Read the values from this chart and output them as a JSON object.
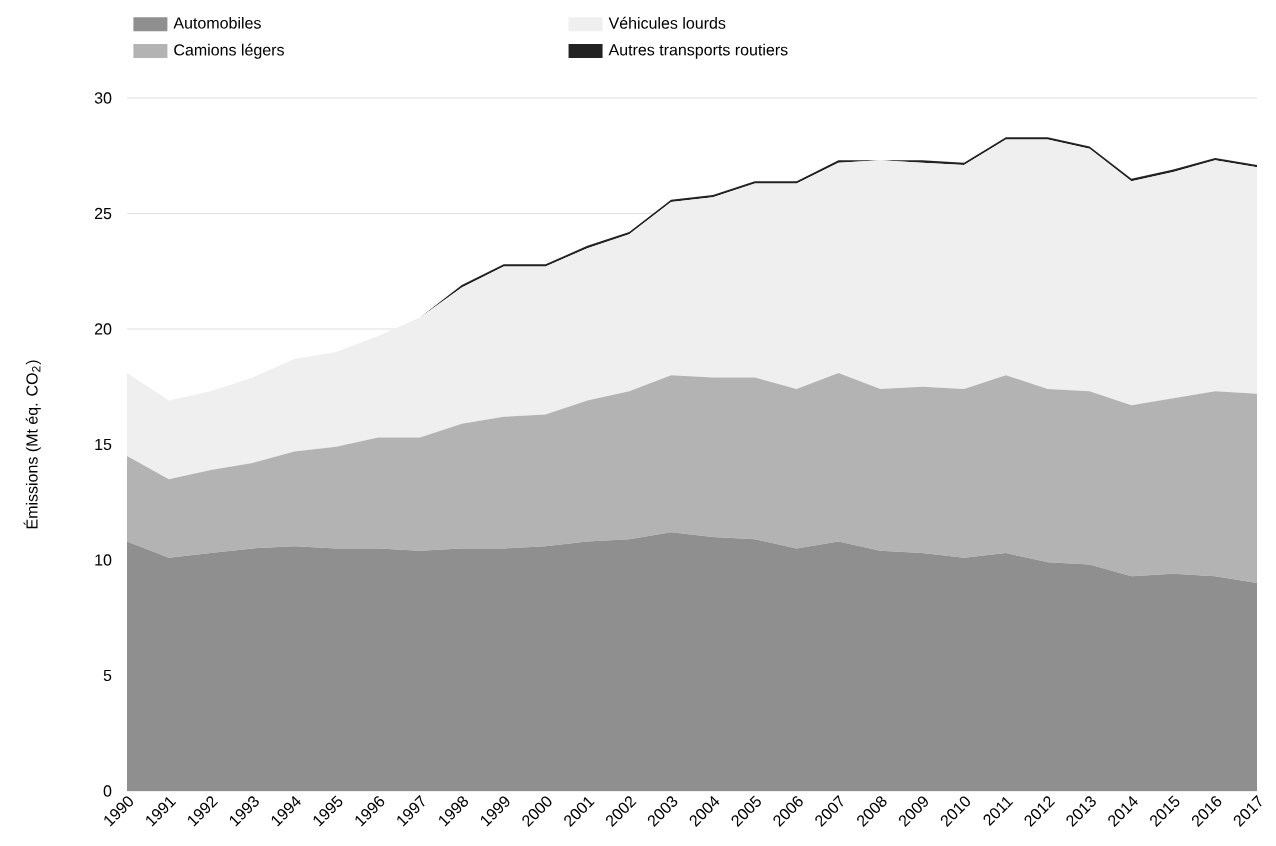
{
  "chart_data": {
    "type": "area",
    "stacked": true,
    "ylabel": "Émissions (Mt éq. CO$_{2}$)",
    "categories": [
      "1990",
      "1991",
      "1992",
      "1993",
      "1994",
      "1995",
      "1996",
      "1997",
      "1998",
      "1999",
      "2000",
      "2001",
      "2002",
      "2003",
      "2004",
      "2005",
      "2006",
      "2007",
      "2008",
      "2009",
      "2010",
      "2011",
      "2012",
      "2013",
      "2014",
      "2015",
      "2016",
      "2017"
    ],
    "series": [
      {
        "name": "Automobiles",
        "color": "#8f8f8f",
        "values": [
          10.8,
          10.1,
          10.3,
          10.5,
          10.6,
          10.5,
          10.5,
          10.4,
          10.5,
          10.5,
          10.6,
          10.8,
          10.9,
          11.2,
          11.0,
          10.9,
          10.5,
          10.8,
          10.4,
          10.3,
          10.1,
          10.3,
          9.9,
          9.8,
          9.3,
          9.4,
          9.3,
          9.0
        ]
      },
      {
        "name": "Camions légers",
        "color": "#b3b3b3",
        "values": [
          3.7,
          3.4,
          3.6,
          3.7,
          4.1,
          4.4,
          4.8,
          4.9,
          5.4,
          5.7,
          5.7,
          6.1,
          6.4,
          6.8,
          6.9,
          7.0,
          6.9,
          7.3,
          7.0,
          7.2,
          7.3,
          7.7,
          7.5,
          7.5,
          7.4,
          7.6,
          8.0,
          8.2
        ]
      },
      {
        "name": "Véhicules lourds",
        "color": "#efefef",
        "values": [
          3.6,
          3.4,
          3.4,
          3.7,
          4.0,
          4.1,
          4.4,
          5.2,
          5.9,
          6.5,
          6.4,
          6.6,
          6.8,
          7.5,
          7.8,
          8.4,
          8.9,
          9.1,
          9.9,
          9.7,
          9.7,
          10.2,
          10.8,
          10.5,
          9.7,
          9.8,
          10.0,
          9.8
        ]
      },
      {
        "name": "Autres transports routiers",
        "color": "#222222",
        "values": [
          0.0,
          0.0,
          0.0,
          0.0,
          0.0,
          0.0,
          0.0,
          0.0,
          0.1,
          0.1,
          0.1,
          0.1,
          0.1,
          0.1,
          0.1,
          0.1,
          0.1,
          0.1,
          0.0,
          0.1,
          0.1,
          0.1,
          0.1,
          0.1,
          0.1,
          0.1,
          0.1,
          0.1
        ]
      }
    ],
    "ylim": [
      0,
      30
    ],
    "yticks": [
      0,
      5,
      10,
      15,
      20,
      25,
      30
    ],
    "grid": "y",
    "legend": "top left"
  }
}
